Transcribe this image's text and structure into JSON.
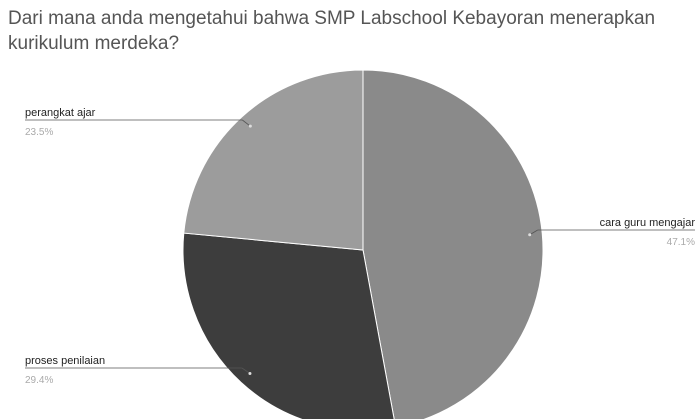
{
  "chart_data": {
    "type": "pie",
    "title": "Dari mana anda mengetahui bahwa SMP Labschool Kebayoran menerapkan kurikulum merdeka?",
    "categories": [
      "cara guru mengajar",
      "proses penilaian",
      "perangkat ajar"
    ],
    "values": [
      47.1,
      29.4,
      23.5
    ],
    "value_labels": [
      "47.1%",
      "29.4%",
      "23.5%"
    ],
    "colors": [
      "#8a8a8a",
      "#3d3d3d",
      "#9c9c9c"
    ]
  }
}
